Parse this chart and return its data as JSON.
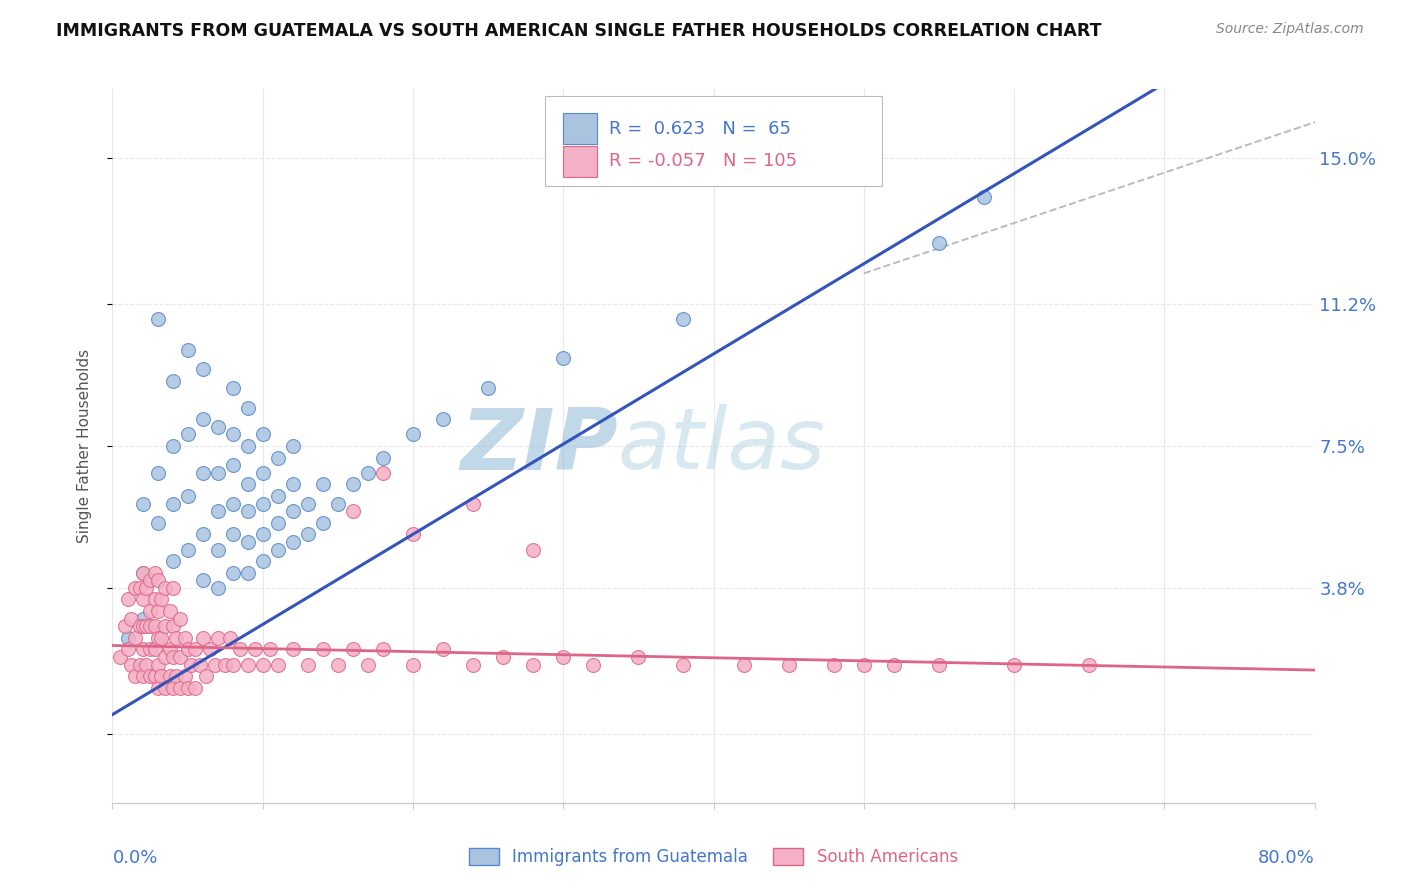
{
  "title": "IMMIGRANTS FROM GUATEMALA VS SOUTH AMERICAN SINGLE FATHER HOUSEHOLDS CORRELATION CHART",
  "source": "Source: ZipAtlas.com",
  "ylabel": "Single Father Households",
  "xlim": [
    0.0,
    0.8
  ],
  "ylim": [
    -0.018,
    0.168
  ],
  "ytick_vals": [
    0.0,
    0.038,
    0.075,
    0.112,
    0.15
  ],
  "ytick_labels": [
    "",
    "3.8%",
    "7.5%",
    "11.2%",
    "15.0%"
  ],
  "blue_label": "Immigrants from Guatemala",
  "pink_label": "South Americans",
  "blue_R": 0.623,
  "blue_N": 65,
  "pink_R": -0.057,
  "pink_N": 105,
  "blue_fill": "#aac4e0",
  "blue_edge": "#5588cc",
  "pink_fill": "#f4b0c4",
  "pink_edge": "#dd6688",
  "trend_blue": "#3355bb",
  "trend_pink": "#dd6688",
  "dash_color": "#bbbbbb",
  "watermark_zip": "#8ab0d8",
  "watermark_atlas": "#aac8e8",
  "bg": "#ffffff",
  "grid_color": "#e8e8e8",
  "grid_style": "--",
  "title_color": "#111111",
  "source_color": "#888888",
  "axis_label_color": "#4477cc",
  "ylabel_color": "#555555",
  "blue_x": [
    0.01,
    0.02,
    0.02,
    0.02,
    0.03,
    0.03,
    0.03,
    0.04,
    0.04,
    0.04,
    0.04,
    0.05,
    0.05,
    0.05,
    0.05,
    0.06,
    0.06,
    0.06,
    0.06,
    0.06,
    0.07,
    0.07,
    0.07,
    0.07,
    0.07,
    0.08,
    0.08,
    0.08,
    0.08,
    0.08,
    0.08,
    0.09,
    0.09,
    0.09,
    0.09,
    0.09,
    0.09,
    0.1,
    0.1,
    0.1,
    0.1,
    0.1,
    0.11,
    0.11,
    0.11,
    0.11,
    0.12,
    0.12,
    0.12,
    0.12,
    0.13,
    0.13,
    0.14,
    0.14,
    0.15,
    0.16,
    0.17,
    0.18,
    0.2,
    0.22,
    0.25,
    0.3,
    0.38,
    0.55,
    0.58
  ],
  "blue_y": [
    0.025,
    0.03,
    0.042,
    0.06,
    0.055,
    0.068,
    0.108,
    0.045,
    0.06,
    0.075,
    0.092,
    0.048,
    0.062,
    0.078,
    0.1,
    0.04,
    0.052,
    0.068,
    0.082,
    0.095,
    0.038,
    0.048,
    0.058,
    0.068,
    0.08,
    0.042,
    0.052,
    0.06,
    0.07,
    0.078,
    0.09,
    0.042,
    0.05,
    0.058,
    0.065,
    0.075,
    0.085,
    0.045,
    0.052,
    0.06,
    0.068,
    0.078,
    0.048,
    0.055,
    0.062,
    0.072,
    0.05,
    0.058,
    0.065,
    0.075,
    0.052,
    0.06,
    0.055,
    0.065,
    0.06,
    0.065,
    0.068,
    0.072,
    0.078,
    0.082,
    0.09,
    0.098,
    0.108,
    0.128,
    0.14
  ],
  "pink_x": [
    0.005,
    0.008,
    0.01,
    0.01,
    0.012,
    0.012,
    0.015,
    0.015,
    0.015,
    0.018,
    0.018,
    0.018,
    0.02,
    0.02,
    0.02,
    0.02,
    0.02,
    0.022,
    0.022,
    0.022,
    0.025,
    0.025,
    0.025,
    0.025,
    0.025,
    0.028,
    0.028,
    0.028,
    0.028,
    0.028,
    0.03,
    0.03,
    0.03,
    0.03,
    0.03,
    0.032,
    0.032,
    0.032,
    0.035,
    0.035,
    0.035,
    0.035,
    0.038,
    0.038,
    0.038,
    0.04,
    0.04,
    0.04,
    0.04,
    0.042,
    0.042,
    0.045,
    0.045,
    0.045,
    0.048,
    0.048,
    0.05,
    0.05,
    0.052,
    0.055,
    0.055,
    0.058,
    0.06,
    0.062,
    0.065,
    0.068,
    0.07,
    0.075,
    0.078,
    0.08,
    0.085,
    0.09,
    0.095,
    0.1,
    0.105,
    0.11,
    0.12,
    0.13,
    0.14,
    0.15,
    0.16,
    0.17,
    0.18,
    0.2,
    0.22,
    0.24,
    0.26,
    0.28,
    0.3,
    0.32,
    0.35,
    0.38,
    0.42,
    0.45,
    0.48,
    0.5,
    0.52,
    0.55,
    0.6,
    0.65,
    0.16,
    0.18,
    0.2,
    0.24,
    0.28
  ],
  "pink_y": [
    0.02,
    0.028,
    0.022,
    0.035,
    0.018,
    0.03,
    0.015,
    0.025,
    0.038,
    0.018,
    0.028,
    0.038,
    0.015,
    0.022,
    0.028,
    0.035,
    0.042,
    0.018,
    0.028,
    0.038,
    0.015,
    0.022,
    0.028,
    0.032,
    0.04,
    0.015,
    0.022,
    0.028,
    0.035,
    0.042,
    0.012,
    0.018,
    0.025,
    0.032,
    0.04,
    0.015,
    0.025,
    0.035,
    0.012,
    0.02,
    0.028,
    0.038,
    0.015,
    0.022,
    0.032,
    0.012,
    0.02,
    0.028,
    0.038,
    0.015,
    0.025,
    0.012,
    0.02,
    0.03,
    0.015,
    0.025,
    0.012,
    0.022,
    0.018,
    0.012,
    0.022,
    0.018,
    0.025,
    0.015,
    0.022,
    0.018,
    0.025,
    0.018,
    0.025,
    0.018,
    0.022,
    0.018,
    0.022,
    0.018,
    0.022,
    0.018,
    0.022,
    0.018,
    0.022,
    0.018,
    0.022,
    0.018,
    0.022,
    0.018,
    0.022,
    0.018,
    0.02,
    0.018,
    0.02,
    0.018,
    0.02,
    0.018,
    0.018,
    0.018,
    0.018,
    0.018,
    0.018,
    0.018,
    0.018,
    0.018,
    0.058,
    0.068,
    0.052,
    0.06,
    0.048
  ]
}
